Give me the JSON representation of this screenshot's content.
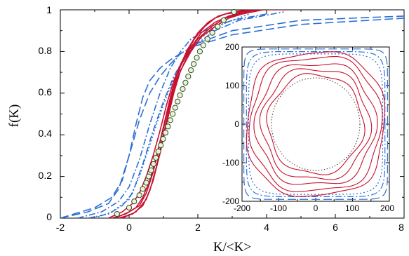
{
  "chart_data": [
    {
      "type": "line",
      "xlabel": "K/<K>",
      "ylabel": "f(K)",
      "xlim": [
        -2,
        8
      ],
      "ylim": [
        0,
        1
      ],
      "x_ticks": [
        "-2",
        "0",
        "2",
        "4",
        "6",
        "8"
      ],
      "y_ticks": [
        "0",
        "0.2",
        "0.4",
        "0.6",
        "0.8",
        "1"
      ],
      "grid": false,
      "colors": {
        "red": "#c8102e",
        "blue": "#2b6fd6",
        "marker_fill": "#e8f5d0"
      },
      "series_red": [
        {
          "x": [
            -0.6,
            -0.2,
            0.1,
            0.3,
            0.5,
            0.7,
            0.9,
            1.1,
            1.3,
            1.6,
            1.9,
            2.2,
            2.5,
            2.8,
            3.2,
            3.6,
            4.0,
            4.6
          ],
          "y": [
            0.0,
            0.03,
            0.07,
            0.12,
            0.2,
            0.3,
            0.42,
            0.55,
            0.66,
            0.77,
            0.86,
            0.92,
            0.96,
            0.98,
            0.99,
            1.0,
            1.0,
            1.0
          ]
        },
        {
          "x": [
            -0.5,
            -0.1,
            0.2,
            0.4,
            0.6,
            0.8,
            1.0,
            1.2,
            1.4,
            1.7,
            2.0,
            2.3,
            2.6,
            3.0,
            3.5,
            4.0
          ],
          "y": [
            0.0,
            0.02,
            0.05,
            0.1,
            0.18,
            0.3,
            0.44,
            0.58,
            0.7,
            0.81,
            0.89,
            0.94,
            0.97,
            0.99,
            1.0,
            1.0
          ]
        },
        {
          "x": [
            -0.4,
            0.0,
            0.3,
            0.5,
            0.7,
            0.9,
            1.1,
            1.3,
            1.5,
            1.8,
            2.1,
            2.5,
            2.9,
            3.3,
            3.8
          ],
          "y": [
            0.0,
            0.03,
            0.06,
            0.12,
            0.22,
            0.36,
            0.5,
            0.63,
            0.73,
            0.82,
            0.89,
            0.94,
            0.97,
            0.99,
            1.0
          ]
        },
        {
          "x": [
            -0.3,
            0.1,
            0.4,
            0.6,
            0.8,
            1.0,
            1.2,
            1.4,
            1.7,
            2.0,
            2.4,
            2.8,
            3.2,
            3.7
          ],
          "y": [
            0.0,
            0.02,
            0.06,
            0.13,
            0.25,
            0.4,
            0.55,
            0.67,
            0.78,
            0.86,
            0.92,
            0.96,
            0.98,
            1.0
          ]
        },
        {
          "x": [
            -0.2,
            0.2,
            0.5,
            0.7,
            0.9,
            1.1,
            1.3,
            1.5,
            1.8,
            2.1,
            2.5,
            2.9,
            3.3,
            3.9
          ],
          "y": [
            0.0,
            0.03,
            0.09,
            0.18,
            0.31,
            0.46,
            0.6,
            0.71,
            0.8,
            0.87,
            0.92,
            0.96,
            0.98,
            1.0
          ]
        }
      ],
      "series_blue": [
        {
          "style": "dash",
          "x": [
            -2.0,
            -1.0,
            -0.5,
            -0.2,
            0.0,
            0.2,
            0.4,
            0.6,
            0.9,
            1.2,
            1.6,
            2.0,
            3.0,
            5.0,
            8.0
          ],
          "y": [
            0.0,
            0.05,
            0.1,
            0.18,
            0.3,
            0.45,
            0.58,
            0.66,
            0.72,
            0.76,
            0.8,
            0.83,
            0.88,
            0.93,
            0.96
          ]
        },
        {
          "style": "dash",
          "x": [
            -2.0,
            -1.2,
            -0.6,
            -0.3,
            0.0,
            0.3,
            0.6,
            0.9,
            1.2,
            1.5,
            2.0,
            3.0,
            5.0,
            8.0
          ],
          "y": [
            0.0,
            0.03,
            0.07,
            0.14,
            0.3,
            0.47,
            0.6,
            0.68,
            0.74,
            0.79,
            0.84,
            0.9,
            0.95,
            0.97
          ]
        },
        {
          "style": "dashdot",
          "x": [
            -1.5,
            -0.8,
            -0.3,
            0.0,
            0.3,
            0.6,
            0.9,
            1.2,
            1.5,
            1.8,
            2.2,
            3.0,
            4.0
          ],
          "y": [
            0.0,
            0.03,
            0.08,
            0.15,
            0.28,
            0.45,
            0.6,
            0.72,
            0.8,
            0.86,
            0.9,
            0.95,
            0.98
          ]
        },
        {
          "style": "dashdot",
          "x": [
            -1.2,
            -0.6,
            -0.2,
            0.1,
            0.4,
            0.7,
            1.0,
            1.3,
            1.6,
            2.0,
            2.5,
            3.2,
            4.5
          ],
          "y": [
            0.0,
            0.02,
            0.06,
            0.12,
            0.26,
            0.42,
            0.56,
            0.68,
            0.77,
            0.84,
            0.9,
            0.95,
            0.99
          ]
        },
        {
          "style": "dot",
          "x": [
            -1.0,
            -0.5,
            0.0,
            0.3,
            0.6,
            0.9,
            1.2,
            1.5,
            1.8,
            2.2,
            2.7,
            3.5
          ],
          "y": [
            0.0,
            0.03,
            0.09,
            0.2,
            0.35,
            0.5,
            0.63,
            0.74,
            0.82,
            0.88,
            0.93,
            0.98
          ]
        }
      ],
      "markers": {
        "x": [
          -0.35,
          0.0,
          0.15,
          0.3,
          0.4,
          0.5,
          0.57,
          0.64,
          0.71,
          0.78,
          0.85,
          0.92,
          0.99,
          1.06,
          1.13,
          1.2,
          1.27,
          1.34,
          1.41,
          1.48,
          1.56,
          1.64,
          1.72,
          1.8,
          1.88,
          1.97,
          2.06,
          2.16,
          2.28,
          2.42,
          2.58,
          2.75,
          3.05
        ],
        "y": [
          0.02,
          0.05,
          0.08,
          0.11,
          0.14,
          0.17,
          0.2,
          0.23,
          0.26,
          0.29,
          0.32,
          0.35,
          0.38,
          0.41,
          0.44,
          0.47,
          0.5,
          0.53,
          0.56,
          0.59,
          0.62,
          0.65,
          0.68,
          0.71,
          0.74,
          0.77,
          0.8,
          0.83,
          0.86,
          0.89,
          0.92,
          0.95,
          0.99
        ]
      }
    },
    {
      "type": "line",
      "name": "inset",
      "xlim": [
        -200,
        200
      ],
      "ylim": [
        -200,
        200
      ],
      "x_ticks": [
        "-200",
        "-100",
        "0",
        "100",
        "200"
      ],
      "y_ticks": [
        "-200",
        "-100",
        "0",
        "100",
        "200"
      ],
      "red_contours": [
        {
          "r": 185,
          "n": 2.6,
          "wobble": 0.03
        },
        {
          "r": 175,
          "n": 2.4,
          "wobble": 0.04
        },
        {
          "r": 160,
          "n": 2.2,
          "wobble": 0.05
        },
        {
          "r": 145,
          "n": 2.1,
          "wobble": 0.05
        },
        {
          "r": 130,
          "n": 2.0,
          "wobble": 0.04
        }
      ],
      "black_dotted_circle": {
        "r": 120
      },
      "blue_contours": [
        {
          "r": 195,
          "n": 12,
          "style": "dash"
        },
        {
          "r": 188,
          "n": 8,
          "style": "dashdot"
        },
        {
          "r": 182,
          "n": 6,
          "style": "dot"
        }
      ]
    }
  ]
}
